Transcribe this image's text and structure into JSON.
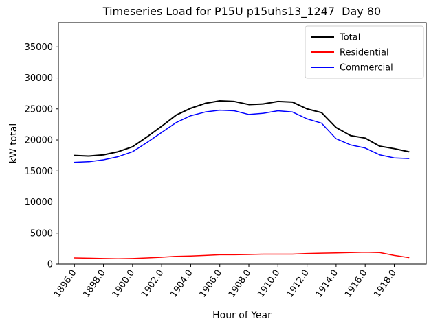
{
  "chart_data": {
    "type": "line",
    "title": "Timeseries Load for P15U p15uhs13_1247  Day 80",
    "xlabel": "Hour of Year",
    "ylabel": "kW total",
    "grid": false,
    "legend_position": "upper right",
    "xlim": [
      1894.9,
      1920.2
    ],
    "ylim": [
      0,
      38900
    ],
    "x_ticks": [
      1896,
      1898,
      1900,
      1902,
      1904,
      1906,
      1908,
      1910,
      1912,
      1914,
      1916,
      1918
    ],
    "x_tick_labels": [
      "1896.0",
      "1898.0",
      "1900.0",
      "1902.0",
      "1904.0",
      "1906.0",
      "1908.0",
      "1910.0",
      "1912.0",
      "1914.0",
      "1916.0",
      "1918.0"
    ],
    "y_ticks": [
      0,
      5000,
      10000,
      15000,
      20000,
      25000,
      30000,
      35000
    ],
    "y_tick_labels": [
      "0",
      "5000",
      "10000",
      "15000",
      "20000",
      "25000",
      "30000",
      "35000"
    ],
    "x": [
      1896,
      1897,
      1898,
      1899,
      1900,
      1901,
      1902,
      1903,
      1904,
      1905,
      1906,
      1907,
      1908,
      1909,
      1910,
      1911,
      1912,
      1913,
      1914,
      1915,
      1916,
      1917,
      1918,
      1919
    ],
    "series": [
      {
        "name": "Total",
        "color": "#000000",
        "width": 2,
        "values": [
          17500,
          17400,
          17600,
          18100,
          18900,
          20500,
          22200,
          24000,
          25100,
          25900,
          26300,
          26200,
          25700,
          25800,
          26200,
          26100,
          25000,
          24400,
          22000,
          20700,
          20300,
          19000,
          18600,
          18100
        ]
      },
      {
        "name": "Residential",
        "color": "#ff0000",
        "width": 1.5,
        "values": [
          1000,
          950,
          900,
          850,
          900,
          1000,
          1100,
          1250,
          1300,
          1400,
          1500,
          1500,
          1550,
          1600,
          1600,
          1600,
          1700,
          1750,
          1800,
          1850,
          1900,
          1850,
          1400,
          1050
        ]
      },
      {
        "name": "Commercial",
        "color": "#0000ff",
        "width": 1.5,
        "values": [
          16400,
          16500,
          16800,
          17300,
          18100,
          19600,
          21200,
          22800,
          23900,
          24500,
          24800,
          24700,
          24100,
          24300,
          24700,
          24500,
          23400,
          22700,
          20200,
          19200,
          18700,
          17600,
          17100,
          17000
        ]
      }
    ]
  }
}
